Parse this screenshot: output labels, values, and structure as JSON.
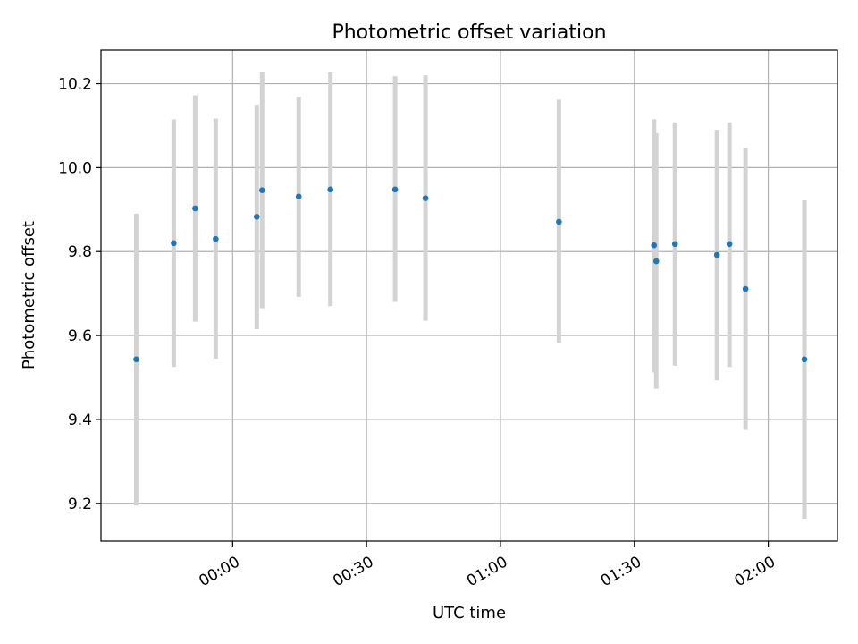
{
  "chart_data": {
    "type": "scatter",
    "title": "Photometric offset variation",
    "xlabel": "UTC time",
    "ylabel": "Photometric offset",
    "grid": true,
    "xlim": [
      -29.5,
      135.5
    ],
    "ylim": [
      9.11,
      10.28
    ],
    "xticks": [
      {
        "value": 0,
        "label": "00:00"
      },
      {
        "value": 30,
        "label": "00:30"
      },
      {
        "value": 60,
        "label": "01:00"
      },
      {
        "value": 90,
        "label": "01:30"
      },
      {
        "value": 120,
        "label": "02:00"
      }
    ],
    "yticks": [
      {
        "value": 9.2,
        "label": "9.2"
      },
      {
        "value": 9.4,
        "label": "9.4"
      },
      {
        "value": 9.6,
        "label": "9.6"
      },
      {
        "value": 9.8,
        "label": "9.8"
      },
      {
        "value": 10.0,
        "label": "10.0"
      },
      {
        "value": 10.2,
        "label": "10.2"
      }
    ],
    "colors": {
      "point": "#1f77b4",
      "errorbar": "#d3d3d3",
      "grid": "#b0b0b0"
    },
    "points": [
      {
        "x": -21.6,
        "y": 9.543,
        "lo": 9.195,
        "hi": 9.89
      },
      {
        "x": -13.2,
        "y": 9.82,
        "lo": 9.525,
        "hi": 10.115
      },
      {
        "x": -8.4,
        "y": 9.903,
        "lo": 9.633,
        "hi": 10.172
      },
      {
        "x": -3.8,
        "y": 9.83,
        "lo": 9.545,
        "hi": 10.117
      },
      {
        "x": 5.4,
        "y": 9.883,
        "lo": 9.615,
        "hi": 10.15
      },
      {
        "x": 6.6,
        "y": 9.946,
        "lo": 9.665,
        "hi": 10.227
      },
      {
        "x": 14.8,
        "y": 9.931,
        "lo": 9.692,
        "hi": 10.168
      },
      {
        "x": 21.9,
        "y": 9.948,
        "lo": 9.67,
        "hi": 10.227
      },
      {
        "x": 36.4,
        "y": 9.948,
        "lo": 9.68,
        "hi": 10.218
      },
      {
        "x": 43.2,
        "y": 9.927,
        "lo": 9.635,
        "hi": 10.22
      },
      {
        "x": 73.1,
        "y": 9.871,
        "lo": 9.582,
        "hi": 10.162
      },
      {
        "x": 94.4,
        "y": 9.815,
        "lo": 9.512,
        "hi": 10.115
      },
      {
        "x": 94.9,
        "y": 9.777,
        "lo": 9.473,
        "hi": 10.082
      },
      {
        "x": 99.1,
        "y": 9.818,
        "lo": 9.528,
        "hi": 10.108
      },
      {
        "x": 108.5,
        "y": 9.792,
        "lo": 9.493,
        "hi": 10.09
      },
      {
        "x": 111.3,
        "y": 9.818,
        "lo": 9.525,
        "hi": 10.108
      },
      {
        "x": 114.9,
        "y": 9.711,
        "lo": 9.375,
        "hi": 10.047
      },
      {
        "x": 128.1,
        "y": 9.543,
        "lo": 9.163,
        "hi": 9.922
      }
    ]
  }
}
